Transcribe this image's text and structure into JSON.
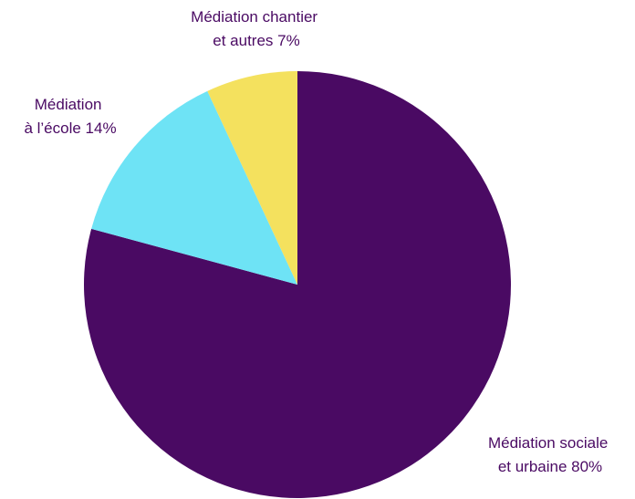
{
  "chart_data": {
    "type": "pie",
    "title": "",
    "series": [
      {
        "name": "",
        "slices": [
          {
            "label_lines": [
              "Médiation sociale",
              "et urbaine 80%"
            ],
            "value": 80,
            "color": "#4a0a63"
          },
          {
            "label_lines": [
              "Médiation",
              "à l’école 14%"
            ],
            "value": 14,
            "color": "#6ee3f5"
          },
          {
            "label_lines": [
              "Médiation chantier",
              "et autres 7%"
            ],
            "value": 7,
            "color": "#f4e15e"
          }
        ]
      }
    ],
    "start_angle": "12 o'clock",
    "direction": "clockwise",
    "legend": "none",
    "label_color": "#4a0a63"
  }
}
